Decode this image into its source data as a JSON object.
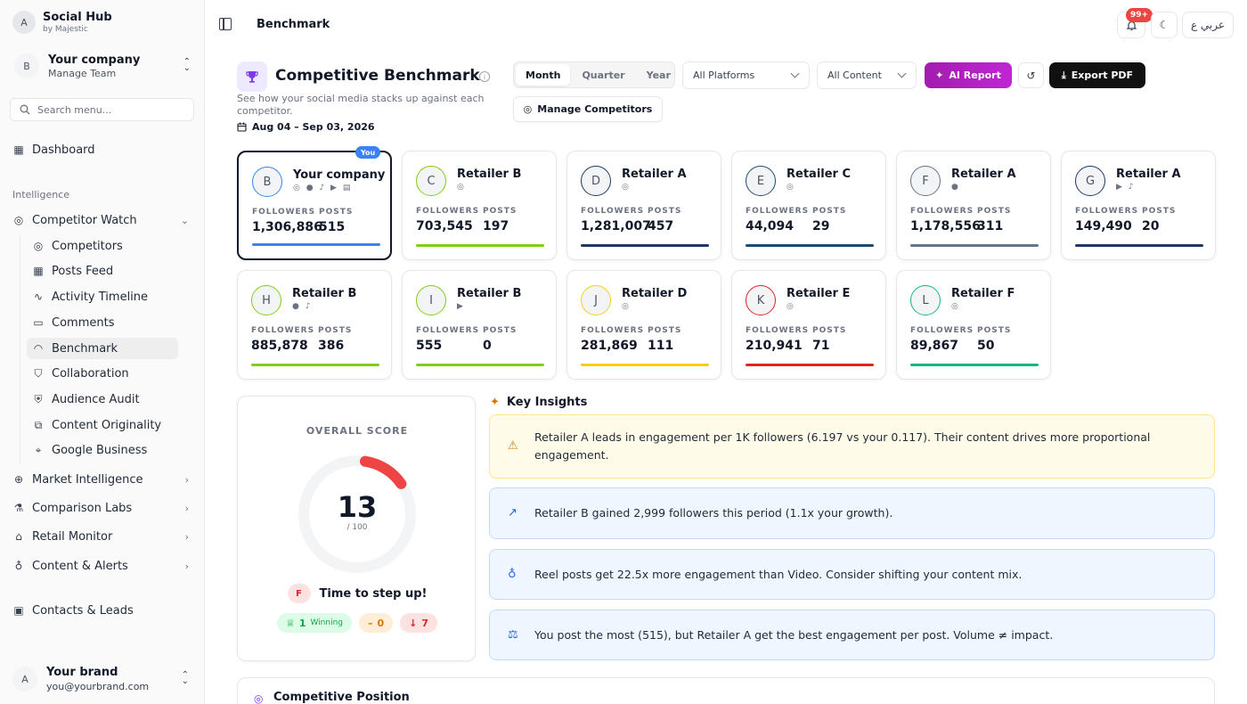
{
  "sidebar": {
    "brand": {
      "avatar": "A",
      "name": "Social Hub",
      "sub": "by Majestic"
    },
    "company": {
      "avatar": "B",
      "name": "Your company",
      "sub": "Manage Team"
    },
    "search_placeholder": "Search menu...",
    "dashboard": "Dashboard",
    "section": "Intelligence",
    "competitor_watch": "Competitor Watch",
    "sub_items": [
      "Competitors",
      "Posts Feed",
      "Activity Timeline",
      "Comments",
      "Benchmark",
      "Collaboration",
      "Audience Audit",
      "Content Originality",
      "Google Business"
    ],
    "groups": [
      "Market Intelligence",
      "Comparison Labs",
      "Retail Monitor",
      "Content & Alerts"
    ],
    "contacts": "Contacts & Leads",
    "user": {
      "avatar": "A",
      "name": "Your brand",
      "email": "you@yourbrand.com"
    }
  },
  "header": {
    "breadcrumb": "Benchmark",
    "notifications_badge": "99+",
    "lang": "عربي ع"
  },
  "page": {
    "title": "Competitive Benchmark",
    "description": "See how your social media stacks up against each competitor.",
    "date_range": "Aug 04 – Sep 03, 2026",
    "periods": [
      "Month",
      "Quarter",
      "Year"
    ],
    "active_period": "Month",
    "platform_select": "All Platforms",
    "content_select": "All Content",
    "ai_report": "AI Report",
    "export_pdf": "Export PDF",
    "manage_competitors": "Manage Competitors"
  },
  "labels": {
    "followers": "FOLLOWERS",
    "posts": "POSTS",
    "you": "You"
  },
  "competitors": [
    {
      "avatar": "B",
      "name": "Your company",
      "platforms": "◎ ● ♪ ▶ ▤",
      "followers": "1,306,886",
      "posts": "515",
      "color": "#3b82f6",
      "you": true
    },
    {
      "avatar": "C",
      "name": "Retailer B",
      "platforms": "◎",
      "followers": "703,545",
      "posts": "197",
      "color": "#84cc16"
    },
    {
      "avatar": "D",
      "name": "Retailer A",
      "platforms": "◎",
      "followers": "1,281,007",
      "posts": "457",
      "color": "#1e3a5f"
    },
    {
      "avatar": "E",
      "name": "Retailer C",
      "platforms": "◎",
      "followers": "44,094",
      "posts": "29",
      "color": "#1e4d6b"
    },
    {
      "avatar": "F",
      "name": "Retailer A",
      "platforms": "●",
      "followers": "1,178,556",
      "posts": "311",
      "color": "#64748b"
    },
    {
      "avatar": "G",
      "name": "Retailer A",
      "platforms": "▶ ♪",
      "followers": "149,490",
      "posts": "20",
      "color": "#1e3a5f"
    },
    {
      "avatar": "H",
      "name": "Retailer B",
      "platforms": "● ♪",
      "followers": "885,878",
      "posts": "386",
      "color": "#84cc16"
    },
    {
      "avatar": "I",
      "name": "Retailer B",
      "platforms": "▶",
      "followers": "555",
      "posts": "0",
      "color": "#84cc16"
    },
    {
      "avatar": "J",
      "name": "Retailer D",
      "platforms": "◎",
      "followers": "281,869",
      "posts": "111",
      "color": "#facc15"
    },
    {
      "avatar": "K",
      "name": "Retailer E",
      "platforms": "◎",
      "followers": "210,941",
      "posts": "71",
      "color": "#dc2626"
    },
    {
      "avatar": "L",
      "name": "Retailer F",
      "platforms": "◎",
      "followers": "89,867",
      "posts": "50",
      "color": "#10b981"
    }
  ],
  "score": {
    "label": "OVERALL SCORE",
    "value": "13",
    "max": "/ 100",
    "fraction": 0.13,
    "grade": "F",
    "message": "Time to step up!",
    "winning_count": "1",
    "winning_label": "Winning",
    "tie_count": "0",
    "losing_count": "7"
  },
  "insights": {
    "title": "Key Insights",
    "items": [
      {
        "text": "Retailer A leads in engagement per 1K followers (6.197 vs your 0.117). Their content drives more proportional engagement.",
        "kind": "warning"
      },
      {
        "text": "Retailer B gained 2,999 followers this period (1.1x your growth).",
        "kind": "info"
      },
      {
        "text": "Reel posts get 22.5x more engagement than Video. Consider shifting your content mix.",
        "kind": "info"
      },
      {
        "text": "You post the most (515), but Retailer A get the best engagement per post. Volume ≠ impact.",
        "kind": "info"
      }
    ]
  },
  "position": {
    "title": "Competitive Position"
  }
}
